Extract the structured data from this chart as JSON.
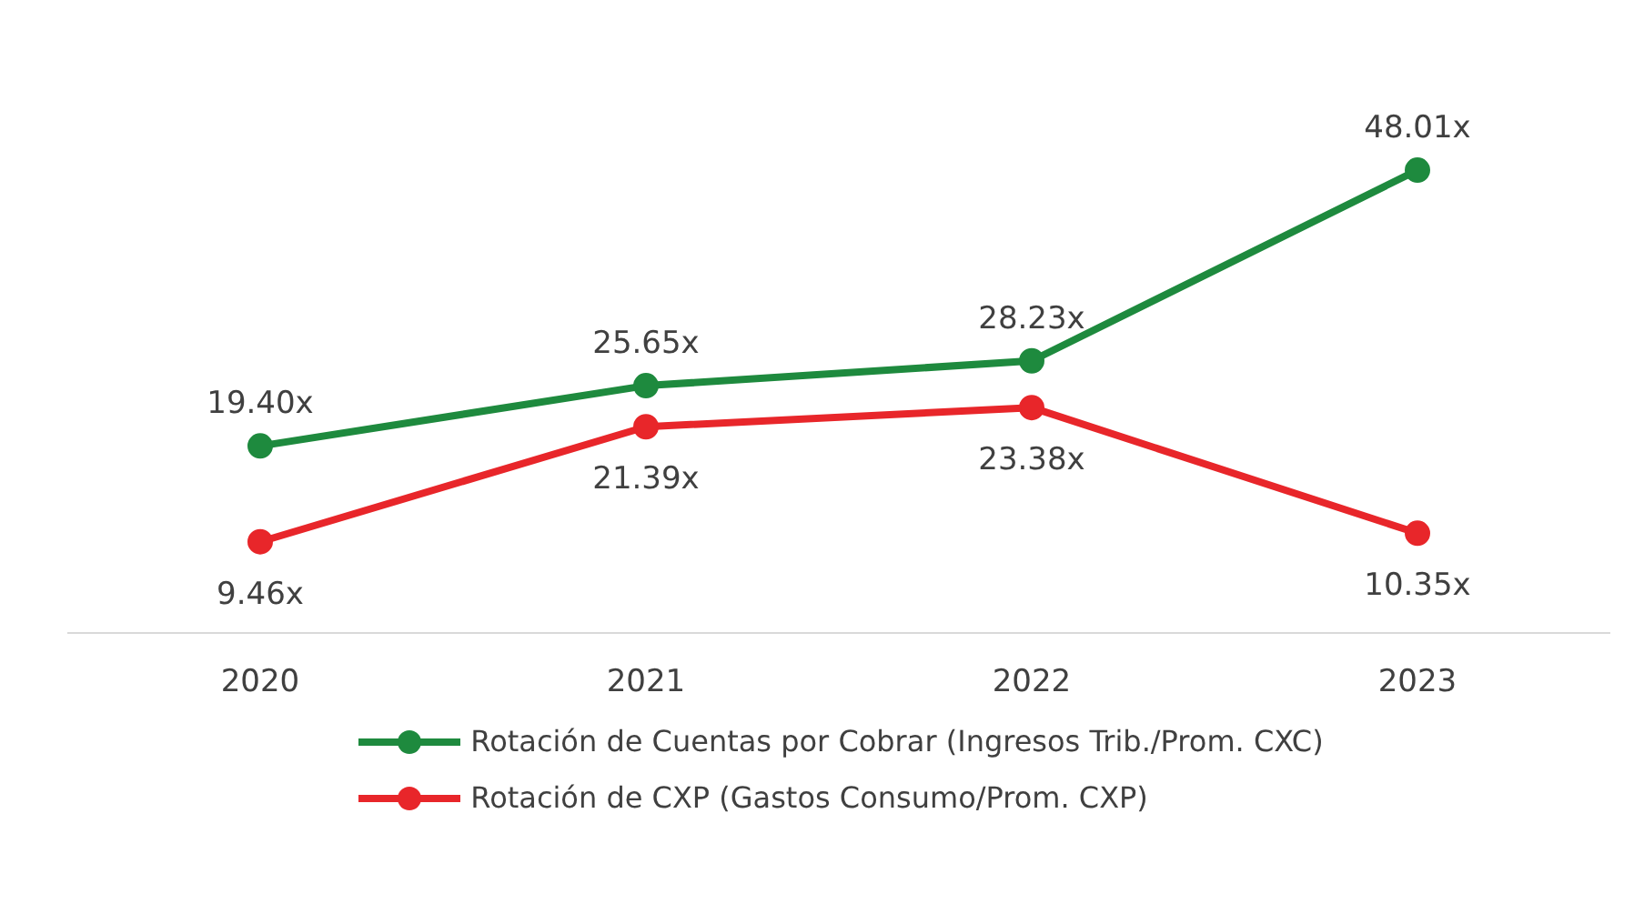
{
  "chart_data": {
    "type": "line",
    "categories": [
      "2020",
      "2021",
      "2022",
      "2023"
    ],
    "series": [
      {
        "name": "Rotación de Cuentas por Cobrar (Ingresos Trib./Prom. CXC)",
        "color": "#1e8a3e",
        "values": [
          19.4,
          25.65,
          28.23,
          48.01
        ],
        "value_labels": [
          "19.40x",
          "25.65x",
          "28.23x",
          "48.01x"
        ]
      },
      {
        "name": "Rotación de CXP (Gastos Consumo/Prom. CXP)",
        "color": "#e8262a",
        "values": [
          9.46,
          21.39,
          23.38,
          10.35
        ],
        "value_labels": [
          "9.46x",
          "21.39x",
          "23.38x",
          "10.35x"
        ]
      }
    ],
    "marker": "circle",
    "line_style": "solid",
    "legend": "bottom"
  }
}
